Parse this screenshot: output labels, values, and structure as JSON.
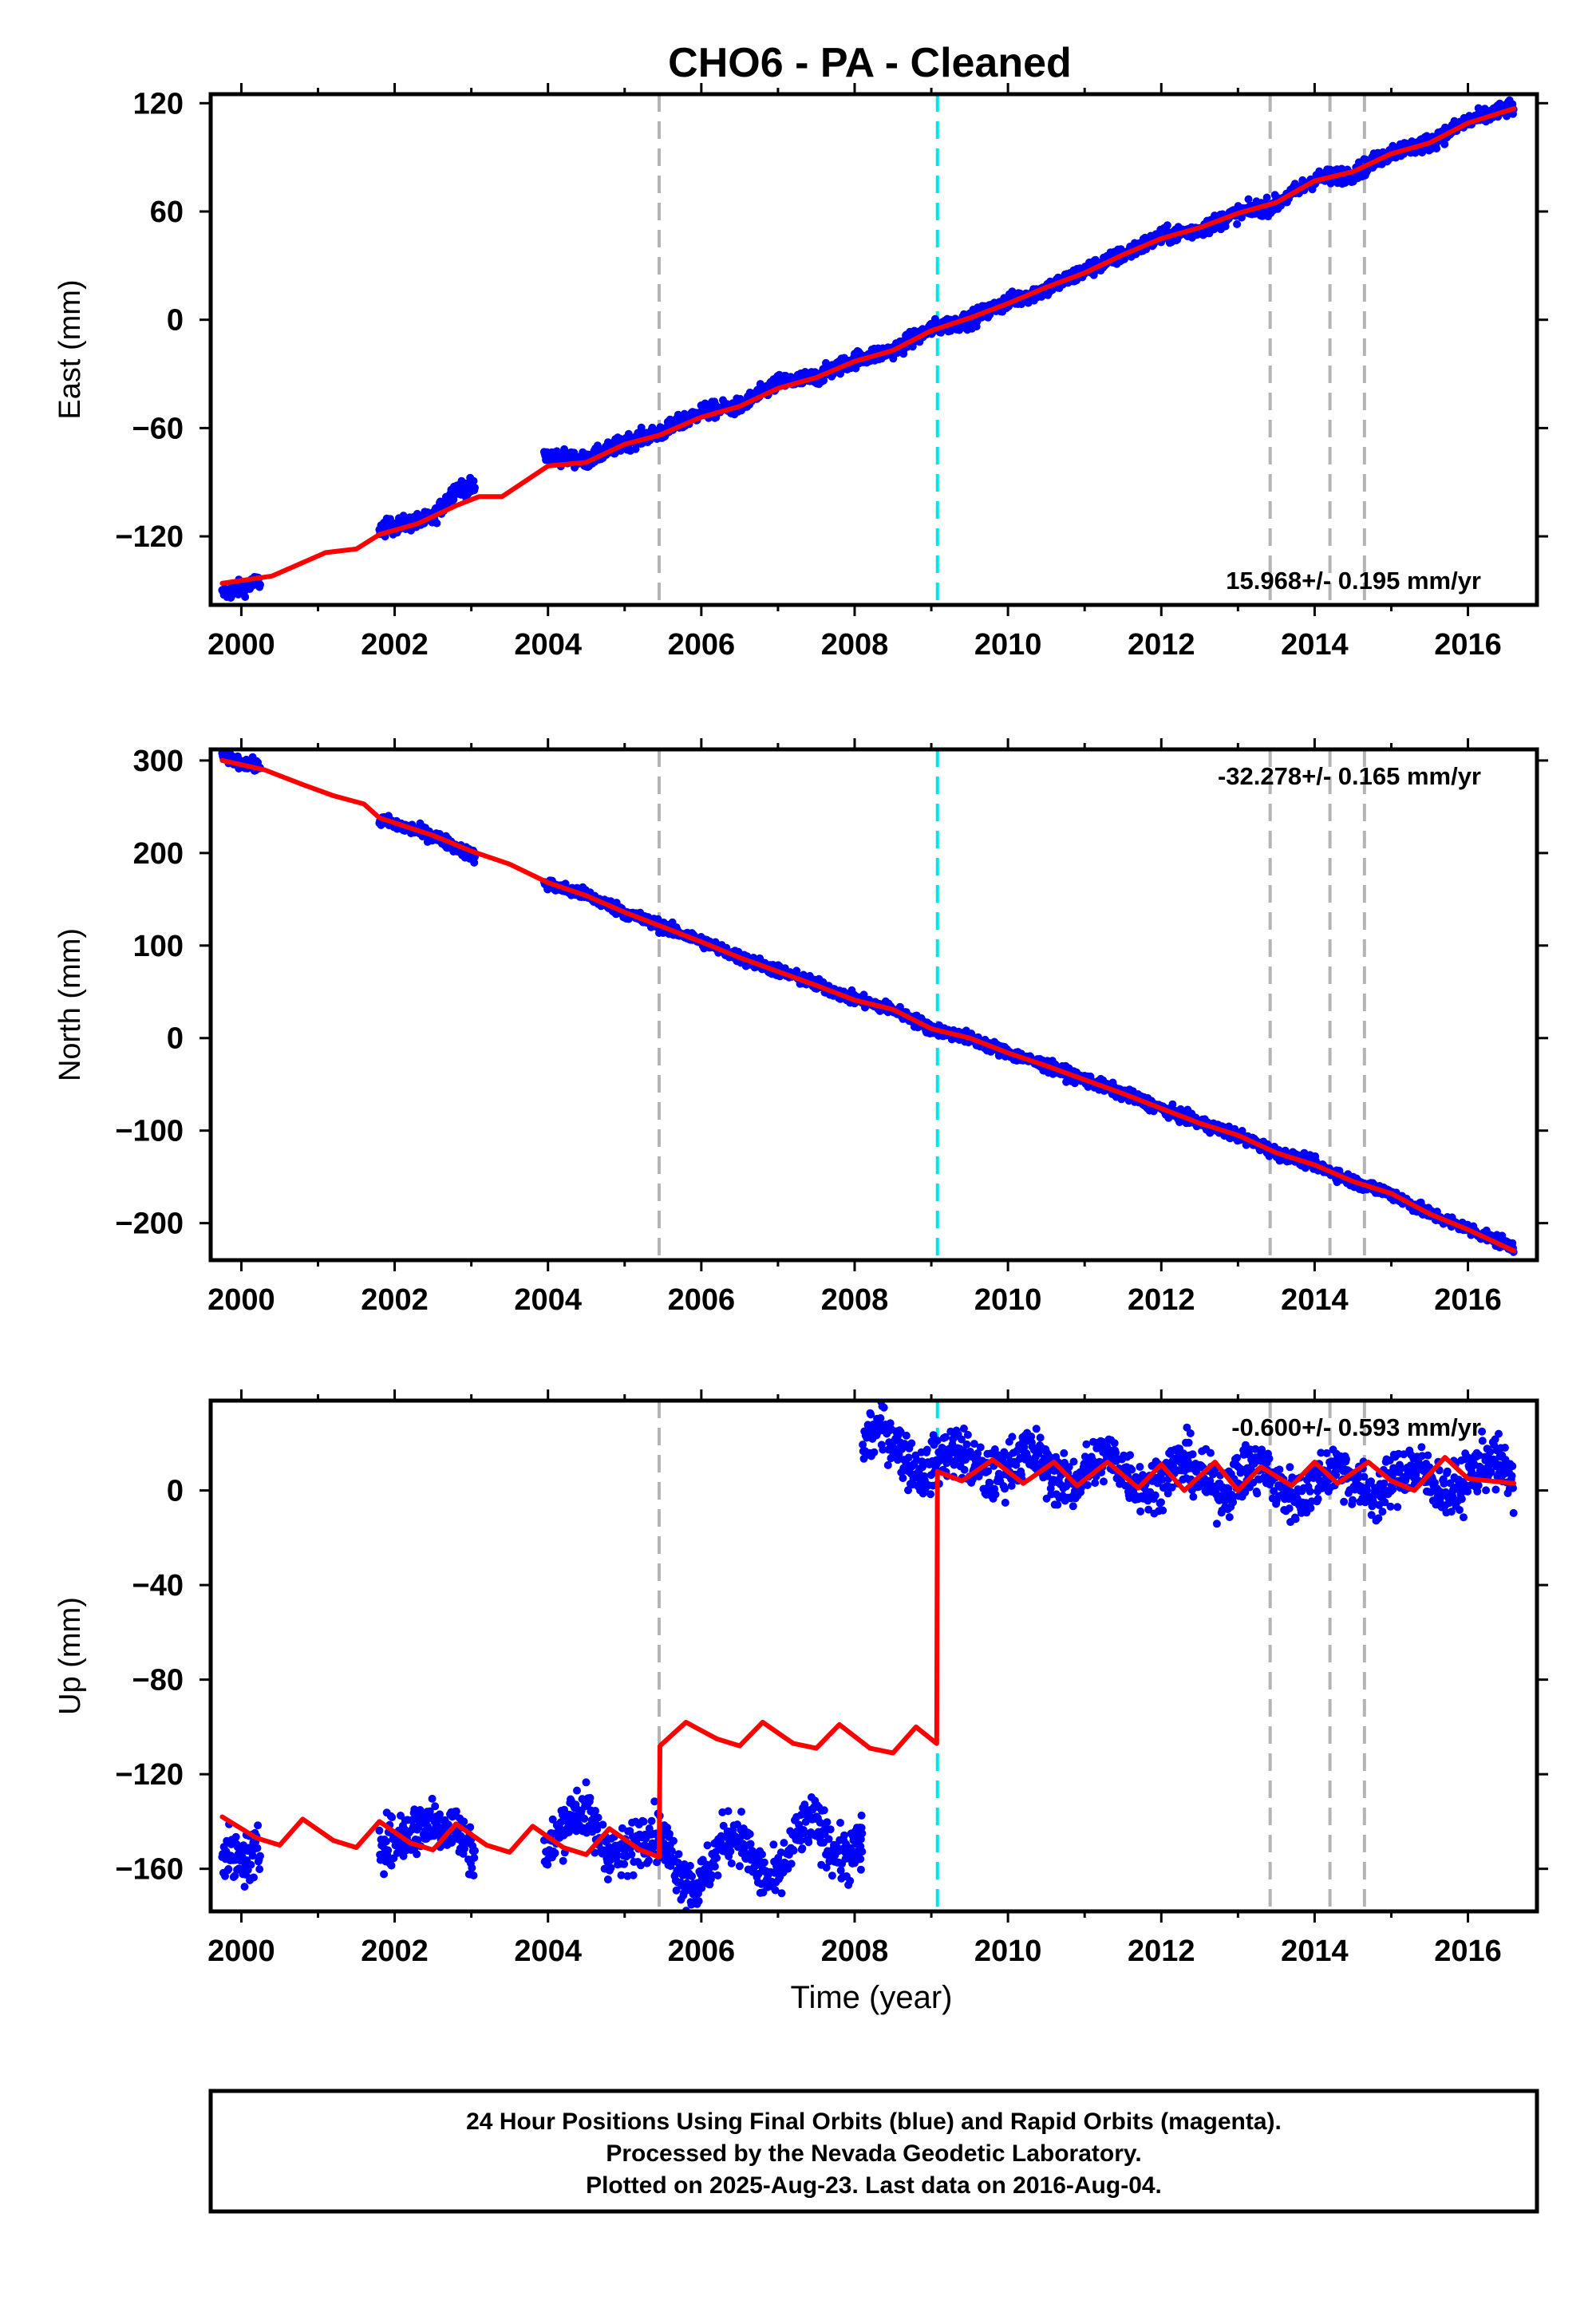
{
  "title": "CHO6  - PA - Cleaned",
  "xlabel": "Time (year)",
  "footer": [
    "24 Hour Positions Using Final Orbits (blue) and Rapid Orbits (magenta).",
    "Processed by the Nevada Geodetic Laboratory.",
    "Plotted on 2025-Aug-23. Last data on 2016-Aug-04."
  ],
  "colors": {
    "data_points": "#0000ff",
    "model_line": "#ff0000",
    "event_line": "#b4b4b4",
    "antenna_change_line": "#00e5e5",
    "axis": "#000000"
  },
  "chart_data": [
    {
      "type": "scatter",
      "panel": "east",
      "ylabel": "East (mm)",
      "xlim": [
        1999.6,
        2016.9
      ],
      "ylim": [
        -158,
        125
      ],
      "yticks": [
        -120,
        -60,
        0,
        60,
        120
      ],
      "xticks": [
        2000,
        2002,
        2004,
        2006,
        2008,
        2010,
        2012,
        2014,
        2016
      ],
      "rate_label": "15.968+/- 0.195 mm/yr",
      "rate_position": "bottom-right",
      "event_lines": [
        2005.45,
        2013.42,
        2014.2,
        2014.65
      ],
      "antenna_change_lines": [
        2009.08
      ],
      "series": [
        {
          "role": "daily positions",
          "color": "#0000ff",
          "segments": [
            [
              1999.75,
              2000.25
            ],
            [
              2001.8,
              2003.05
            ],
            [
              2003.95,
              2016.6
            ]
          ],
          "x": [
            1999.75,
            2000.25,
            2001.8,
            2002.5,
            2002.8,
            2003.05,
            2003.95,
            2004.5,
            2005.0,
            2005.5,
            2006.0,
            2006.5,
            2007.0,
            2007.5,
            2008.0,
            2008.5,
            2009.0,
            2009.5,
            2010.0,
            2010.5,
            2011.0,
            2011.5,
            2012.0,
            2012.5,
            2013.0,
            2013.5,
            2014.0,
            2014.5,
            2015.0,
            2015.5,
            2016.0,
            2016.6
          ],
          "y": [
            -152,
            -145,
            -116,
            -110,
            -93,
            -93,
            -75,
            -78,
            -68,
            -62,
            -51,
            -48,
            -35,
            -32,
            -22,
            -17,
            -5,
            0,
            10,
            17,
            27,
            36,
            46,
            50,
            59,
            64,
            78,
            81,
            93,
            98,
            110,
            118
          ]
        },
        {
          "role": "model",
          "color": "#ff0000",
          "x": [
            1999.75,
            2000.4,
            2001.1,
            2001.5,
            2001.8,
            2002.3,
            2002.8,
            2003.1,
            2003.4,
            2004.0,
            2004.5,
            2005.0,
            2005.45,
            2006.0,
            2006.5,
            2007.0,
            2007.5,
            2008.0,
            2008.5,
            2009.0,
            2009.5,
            2010.0,
            2010.5,
            2011.0,
            2011.5,
            2012.0,
            2012.5,
            2013.0,
            2013.5,
            2014.0,
            2014.5,
            2015.0,
            2015.5,
            2016.0,
            2016.6
          ],
          "y": [
            -146,
            -142,
            -129,
            -127,
            -119,
            -113,
            -103,
            -98,
            -98,
            -81,
            -79,
            -69,
            -64,
            -54,
            -48,
            -38,
            -32,
            -23,
            -17,
            -6,
            1,
            9,
            18,
            26,
            36,
            45,
            51,
            59,
            65,
            77,
            82,
            92,
            98,
            109,
            117
          ]
        }
      ]
    },
    {
      "type": "scatter",
      "panel": "north",
      "ylabel": "North (mm)",
      "xlim": [
        1999.6,
        2016.9
      ],
      "ylim": [
        -240,
        312
      ],
      "yticks": [
        -200,
        -100,
        0,
        100,
        200,
        300
      ],
      "xticks": [
        2000,
        2002,
        2004,
        2006,
        2008,
        2010,
        2012,
        2014,
        2016
      ],
      "rate_label": "-32.278+/- 0.165 mm/yr",
      "rate_position": "top-right",
      "event_lines": [
        2005.45,
        2013.42,
        2014.2,
        2014.65
      ],
      "antenna_change_lines": [
        2009.08
      ],
      "series": [
        {
          "role": "daily positions",
          "color": "#0000ff",
          "segments": [
            [
              1999.75,
              2000.25
            ],
            [
              2001.8,
              2003.05
            ],
            [
              2003.95,
              2016.6
            ]
          ],
          "x": [
            1999.75,
            2000.25,
            2001.8,
            2002.5,
            2003.05,
            2003.95,
            2004.5,
            2005.0,
            2005.5,
            2006.0,
            2006.5,
            2007.0,
            2007.5,
            2008.0,
            2008.5,
            2009.0,
            2009.5,
            2010.0,
            2010.5,
            2011.0,
            2011.5,
            2012.0,
            2012.5,
            2013.0,
            2013.5,
            2014.0,
            2014.5,
            2015.0,
            2015.5,
            2016.0,
            2016.6
          ],
          "y": [
            305,
            292,
            236,
            219,
            196,
            167,
            155,
            136,
            120,
            105,
            87,
            73,
            58,
            42,
            31,
            10,
            0,
            -16,
            -30,
            -45,
            -60,
            -76,
            -92,
            -105,
            -124,
            -136,
            -155,
            -168,
            -190,
            -206,
            -226
          ]
        },
        {
          "role": "model",
          "color": "#ff0000",
          "x": [
            1999.75,
            2000.3,
            2000.8,
            2001.2,
            2001.6,
            2001.8,
            2002.5,
            2003.0,
            2003.5,
            2004.0,
            2004.5,
            2005.0,
            2005.5,
            2006.0,
            2006.5,
            2007.0,
            2007.5,
            2008.0,
            2008.5,
            2009.0,
            2009.5,
            2010.0,
            2010.5,
            2011.0,
            2011.5,
            2012.0,
            2012.5,
            2013.0,
            2013.5,
            2014.0,
            2014.5,
            2015.0,
            2015.5,
            2016.0,
            2016.6
          ],
          "y": [
            300,
            290,
            274,
            262,
            253,
            238,
            219,
            202,
            188,
            168,
            154,
            136,
            120,
            104,
            87,
            72,
            57,
            41,
            31,
            10,
            0,
            -16,
            -30,
            -45,
            -60,
            -76,
            -92,
            -105,
            -124,
            -137,
            -155,
            -168,
            -190,
            -207,
            -230
          ]
        }
      ]
    },
    {
      "type": "scatter",
      "panel": "up",
      "ylabel": "Up (mm)",
      "xlim": [
        1999.6,
        2016.9
      ],
      "ylim": [
        -178,
        38
      ],
      "yticks": [
        -160,
        -120,
        -80,
        -40,
        0
      ],
      "xticks": [
        2000,
        2002,
        2004,
        2006,
        2008,
        2010,
        2012,
        2014,
        2016
      ],
      "rate_label": "-0.600+/- 0.593 mm/yr",
      "rate_position": "top-right",
      "event_lines": [
        2005.45,
        2013.42,
        2014.2,
        2014.65
      ],
      "antenna_change_lines": [
        2009.08
      ],
      "series": [
        {
          "role": "daily positions",
          "color": "#0000ff",
          "segments": [
            [
              1999.75,
              2000.25
            ],
            [
              2001.8,
              2003.05
            ],
            [
              2003.95,
              2008.1
            ],
            [
              2008.0,
              2016.6
            ]
          ],
          "x": [
            1999.75,
            2000.25,
            2001.8,
            2002.3,
            2002.8,
            2003.05,
            2003.95,
            2004.5,
            2005.0,
            2005.5,
            2006.0,
            2006.5,
            2007.0,
            2007.5,
            2008.1,
            2008.0,
            2008.5,
            2009.0,
            2009.5,
            2010.0,
            2010.5,
            2011.0,
            2011.5,
            2012.0,
            2012.5,
            2013.0,
            2013.5,
            2014.0,
            2014.5,
            2015.0,
            2015.5,
            2016.0,
            2016.6
          ],
          "y": [
            -145,
            -160,
            -140,
            -150,
            -135,
            -150,
            -150,
            -140,
            -150,
            -152,
            -162,
            -150,
            -160,
            -145,
            -150,
            20,
            18,
            14,
            8,
            15,
            5,
            12,
            5,
            10,
            2,
            10,
            -2,
            8,
            0,
            8,
            0,
            10,
            2
          ]
        },
        {
          "role": "model",
          "color": "#ff0000",
          "x": [
            1999.75,
            2000.2,
            2000.5,
            2000.8,
            2001.2,
            2001.5,
            2001.8,
            2002.2,
            2002.5,
            2002.8,
            2003.2,
            2003.5,
            2003.8,
            2004.2,
            2004.5,
            2004.8,
            2005.2,
            2005.45,
            2005.46,
            2005.8,
            2006.2,
            2006.5,
            2006.8,
            2007.2,
            2007.5,
            2007.8,
            2008.2,
            2008.5,
            2008.8,
            2009.07,
            2009.08,
            2009.4,
            2009.8,
            2010.2,
            2010.6,
            2010.9,
            2011.3,
            2011.7,
            2012.0,
            2012.3,
            2012.7,
            2013.0,
            2013.3,
            2013.7,
            2014.0,
            2014.3,
            2014.7,
            2015.0,
            2015.3,
            2015.7,
            2016.0,
            2016.6
          ],
          "y": [
            -138,
            -147,
            -150,
            -139,
            -148,
            -151,
            -140,
            -149,
            -152,
            -141,
            -150,
            -153,
            -142,
            -151,
            -154,
            -143,
            -152,
            -155,
            -108,
            -98,
            -105,
            -108,
            -98,
            -107,
            -109,
            -99,
            -109,
            -111,
            -100,
            -107,
            8,
            4,
            13,
            3,
            12,
            2,
            12,
            1,
            11,
            0,
            12,
            0,
            10,
            2,
            12,
            3,
            12,
            4,
            0,
            14,
            5,
            3
          ]
        }
      ]
    }
  ]
}
